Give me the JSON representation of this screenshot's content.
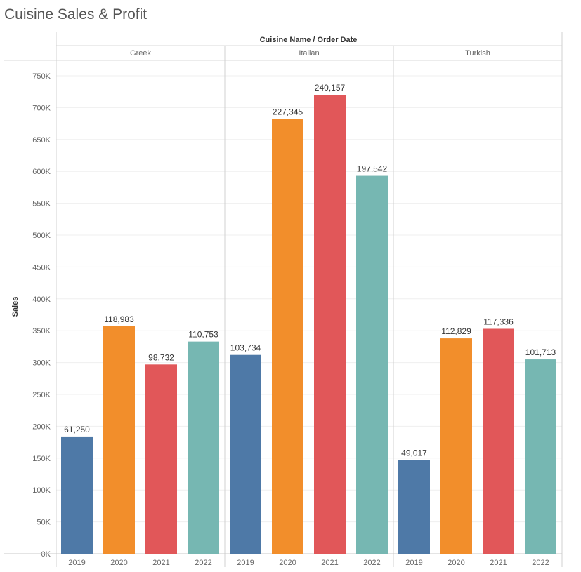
{
  "title": "Cuisine Sales & Profit",
  "chart_data": {
    "type": "bar",
    "header_label": "Cuisine Name  /  Order Date",
    "ylabel": "Sales",
    "ylim": [
      0,
      780000
    ],
    "yticks": [
      0,
      50000,
      100000,
      150000,
      200000,
      250000,
      300000,
      350000,
      400000,
      450000,
      500000,
      550000,
      600000,
      650000,
      700000,
      750000
    ],
    "ytick_labels": [
      "0K",
      "50K",
      "100K",
      "150K",
      "200K",
      "250K",
      "300K",
      "350K",
      "400K",
      "450K",
      "500K",
      "550K",
      "600K",
      "650K",
      "700K",
      "750K"
    ],
    "years": [
      "2019",
      "2020",
      "2021",
      "2022"
    ],
    "year_colors": [
      "#4e79a7",
      "#f28e2b",
      "#e15759",
      "#76b7b2"
    ],
    "grid": true,
    "groups": [
      {
        "name": "Greek",
        "values": [
          184000,
          357000,
          297000,
          333000
        ],
        "labels": [
          "61,250",
          "118,983",
          "98,732",
          "110,753"
        ]
      },
      {
        "name": "Italian",
        "values": [
          312000,
          682000,
          720000,
          593000
        ],
        "labels": [
          "103,734",
          "227,345",
          "240,157",
          "197,542"
        ]
      },
      {
        "name": "Turkish",
        "values": [
          147000,
          338000,
          353000,
          305000
        ],
        "labels": [
          "49,017",
          "112,829",
          "117,336",
          "101,713"
        ]
      }
    ]
  }
}
